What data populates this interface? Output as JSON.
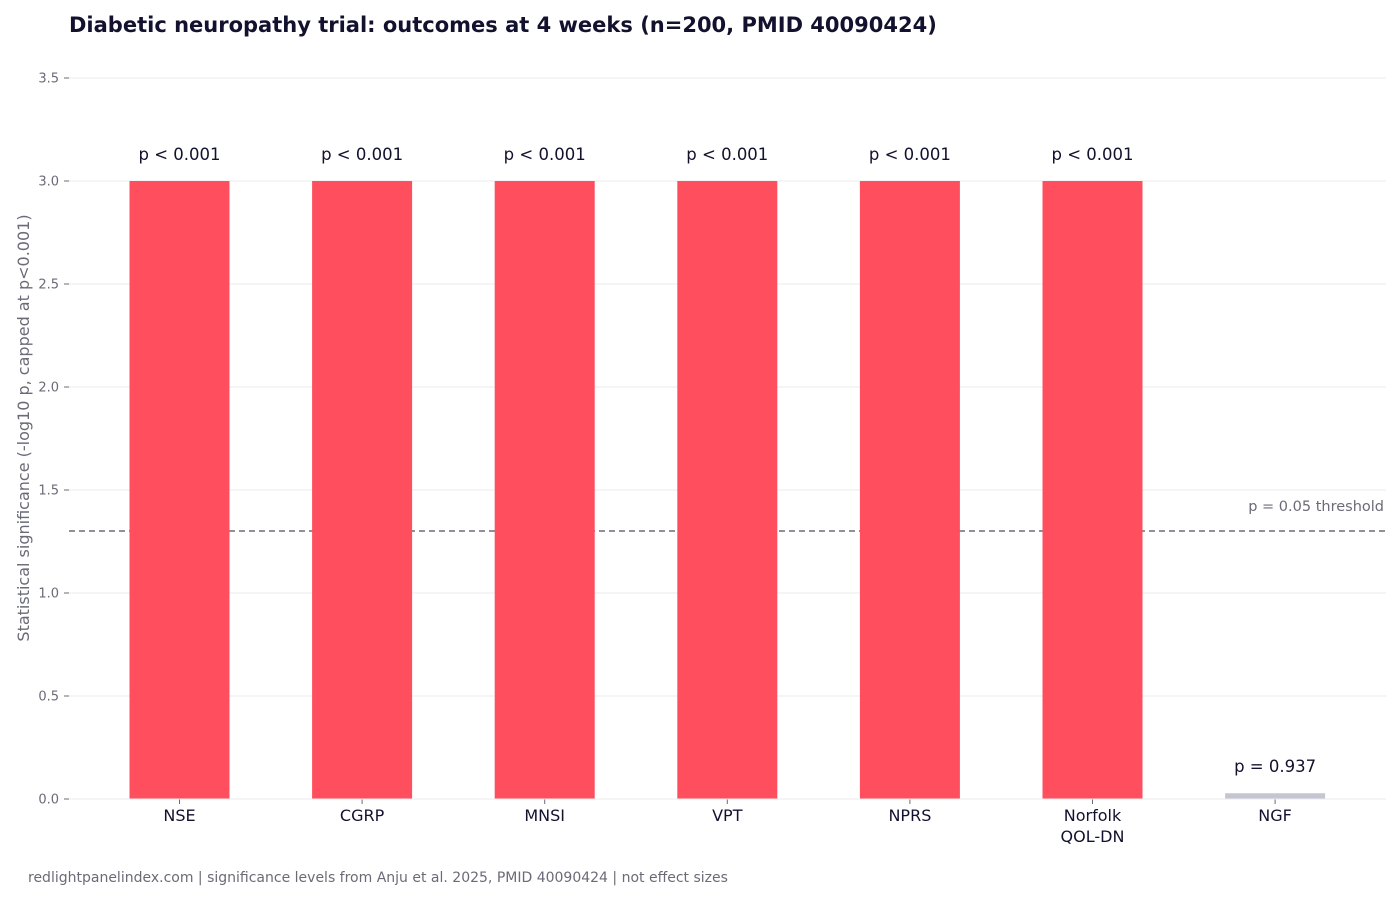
{
  "chart_data": {
    "type": "bar",
    "title": "Diabetic neuropathy trial: outcomes at 4 weeks (n=200, PMID 40090424)",
    "ylabel": "Statistical significance (-log10 p, capped at p<0.001)",
    "xlabel": "",
    "ylim": [
      0,
      3.5
    ],
    "yticks": [
      "0.0",
      "0.5",
      "1.0",
      "1.5",
      "2.0",
      "2.5",
      "3.0",
      "3.5"
    ],
    "grid": true,
    "categories": [
      [
        "NSE"
      ],
      [
        "CGRP"
      ],
      [
        "MNSI"
      ],
      [
        "VPT"
      ],
      [
        "NPRS"
      ],
      [
        "Norfolk",
        "QOL-DN"
      ],
      [
        "NGF"
      ]
    ],
    "values": [
      3.0,
      3.0,
      3.0,
      3.0,
      3.0,
      3.0,
      0.028
    ],
    "data_labels": [
      "p < 0.001",
      "p < 0.001",
      "p < 0.001",
      "p < 0.001",
      "p < 0.001",
      "p < 0.001",
      "p = 0.937"
    ],
    "significant": [
      true,
      true,
      true,
      true,
      true,
      true,
      false
    ],
    "threshold": {
      "value": 1.301,
      "label": "p = 0.05 threshold"
    },
    "colors": {
      "significant": "#ff4f5e",
      "not_significant": "#c6c6d2",
      "threshold": "#6b6b78",
      "grid": "#ebebee"
    }
  },
  "footer": "redlightpanelindex.com | significance levels from Anju et al. 2025, PMID 40090424 | not effect sizes"
}
